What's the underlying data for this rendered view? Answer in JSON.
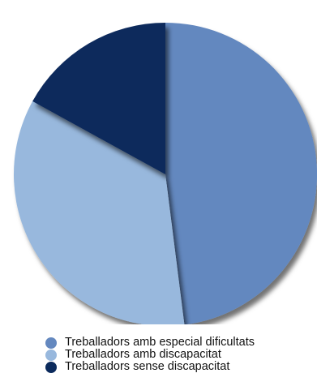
{
  "chart_data": {
    "type": "pie",
    "title": "",
    "slices": [
      {
        "label": "Treballadors amb especial dificultats",
        "value": 48,
        "color": "#6488bf"
      },
      {
        "label": "Treballadors amb discapacitat",
        "value": 35,
        "color": "#98b8dd"
      },
      {
        "label": "Treballadors sense discapacitat",
        "value": 17,
        "color": "#0b2a5c"
      }
    ],
    "start_angle_deg": 0,
    "direction": "clockwise",
    "legend_position": "bottom"
  }
}
